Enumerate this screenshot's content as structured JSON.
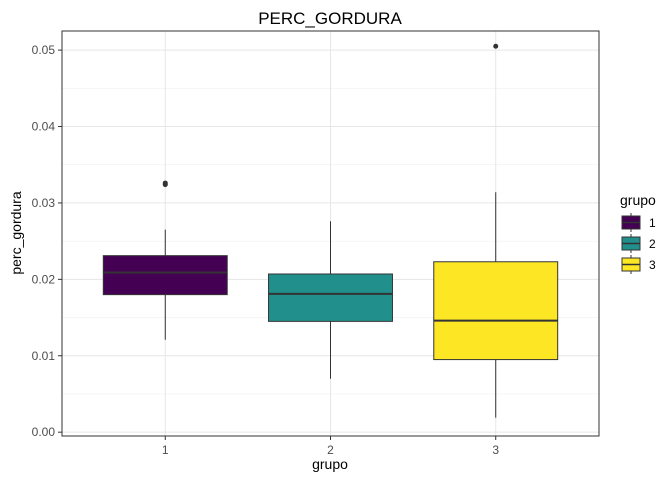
{
  "chart_data": {
    "type": "boxplot",
    "title": "PERC_GORDURA",
    "xlabel": "grupo",
    "ylabel": "perc_gordura",
    "ylim": [
      0.0,
      0.052
    ],
    "yticks": [
      "0.00",
      "0.01",
      "0.02",
      "0.03",
      "0.04",
      "0.05"
    ],
    "grid": true,
    "legend": {
      "title": "grupo",
      "position": "right",
      "items": [
        "1",
        "2",
        "3"
      ]
    },
    "categories": [
      "1",
      "2",
      "3"
    ],
    "boxes": [
      {
        "category": "1",
        "whisker_low": 0.0121,
        "q1": 0.018,
        "median": 0.0209,
        "q3": 0.0231,
        "whisker_high": 0.0265,
        "outliers": [
          0.0324,
          0.0326
        ],
        "color": "#440154"
      },
      {
        "category": "2",
        "whisker_low": 0.007,
        "q1": 0.0145,
        "median": 0.0181,
        "q3": 0.0207,
        "whisker_high": 0.0276,
        "outliers": [],
        "color": "#21908C"
      },
      {
        "category": "3",
        "whisker_low": 0.0019,
        "q1": 0.0095,
        "median": 0.0146,
        "q3": 0.0223,
        "whisker_high": 0.0314,
        "outliers": [
          0.0505
        ],
        "color": "#FDE725"
      }
    ]
  }
}
